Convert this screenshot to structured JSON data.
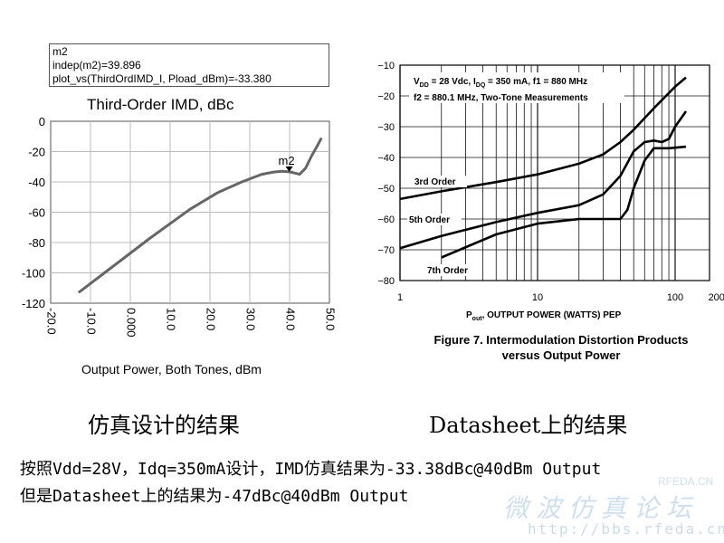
{
  "left_chart": {
    "marker": {
      "name": "m2",
      "indep_line": "indep(m2)=39.896",
      "value_line": "plot_vs(ThirdOrdIMD_I, Pload_dBm)=-33.380"
    },
    "title": "Third-Order IMD, dBc",
    "xlabel": "Output Power, Both Tones, dBm",
    "x_ticks": [
      "-20.0",
      "-10.0",
      "0.000",
      "10.0",
      "20.0",
      "30.0",
      "40.0",
      "50.0"
    ],
    "y_ticks": [
      "0",
      "-20",
      "-40",
      "-60",
      "-80",
      "-100",
      "-120"
    ]
  },
  "right_chart": {
    "conditions_line1": "V",
    "conditions_line1_sub": "DD",
    "conditions_line1_rest": " = 28 Vdc, I",
    "conditions_line1_sub2": "DQ",
    "conditions_line1_rest2": " = 350 mA, f1 = 880 MHz",
    "conditions_line2": "f2 = 880.1 MHz, Two-Tone Measurements",
    "y_ticks": [
      "−10",
      "−20",
      "−30",
      "−40",
      "−50",
      "−60",
      "−70",
      "−80"
    ],
    "x_ticks": [
      "1",
      "10",
      "100",
      "200"
    ],
    "xlabel_main": "P",
    "xlabel_sub": "out",
    "xlabel_rest": ", OUTPUT POWER (WATTS) PEP",
    "figure_caption_line1": "Figure 7. Intermodulation Distortion Products",
    "figure_caption_line2": "versus Output Power",
    "curve_labels": [
      "3rd Order",
      "5th Order",
      "7th Order"
    ]
  },
  "captions": {
    "left": "仿真设计的结果",
    "right": "Datasheet上的结果"
  },
  "notes": {
    "line1": "按照Vdd=28V，Idq=350mA设计，IMD仿真结果为-33.38dBc@40dBm Output",
    "line2": "但是Datasheet上的结果为-47dBc@40dBm Output"
  },
  "watermark": {
    "site": "RFEDA.CN",
    "title": "微波仿真论坛",
    "url": "http://bbs.rfeda.cn"
  },
  "chart_data": [
    {
      "type": "line",
      "title": "Third-Order IMD, dBc",
      "xlabel": "Output Power, Both Tones, dBm",
      "ylabel": "",
      "xlim": [
        -20,
        50
      ],
      "ylim": [
        -120,
        0
      ],
      "grid": true,
      "series": [
        {
          "x": [
            -13,
            -5,
            5,
            15,
            22,
            28,
            33,
            36,
            38,
            40,
            41,
            42.5,
            44,
            45.5,
            47,
            48
          ],
          "y": [
            -113,
            -97,
            -77,
            -58,
            -47,
            -40,
            -35,
            -33.5,
            -33,
            -33.38,
            -34,
            -35,
            -31,
            -23,
            -16,
            -11
          ]
        }
      ],
      "annotations": [
        {
          "label": "m2",
          "x": 39.896,
          "y": -33.38
        }
      ]
    },
    {
      "type": "line",
      "title": "",
      "xlabel": "Pout, OUTPUT POWER (WATTS) PEP",
      "ylabel": "",
      "x_scale": "log",
      "xlim": [
        1,
        200
      ],
      "ylim": [
        -80,
        -10
      ],
      "grid": true,
      "series": [
        {
          "name": "3rd Order",
          "x": [
            1,
            2,
            5,
            10,
            20,
            30,
            40,
            50,
            70,
            100,
            120
          ],
          "y": [
            -53.5,
            -51,
            -48,
            -45.5,
            -42,
            -39,
            -35,
            -31,
            -24,
            -17,
            -14
          ]
        },
        {
          "name": "5th Order",
          "x": [
            1,
            2,
            5,
            10,
            20,
            30,
            40,
            50,
            60,
            70,
            80,
            90,
            100,
            120
          ],
          "y": [
            -69.5,
            -65.5,
            -61,
            -58,
            -55.5,
            -52,
            -46,
            -38,
            -35,
            -34.5,
            -35,
            -34,
            -30,
            -25
          ]
        },
        {
          "name": "7th Order",
          "x": [
            2,
            5,
            10,
            20,
            30,
            40,
            45,
            50,
            60,
            70,
            80,
            90,
            120
          ],
          "y": [
            -72.5,
            -65,
            -61.5,
            -60,
            -60,
            -60,
            -57,
            -50,
            -41,
            -37,
            -37,
            -37,
            -36.5
          ]
        }
      ]
    }
  ]
}
